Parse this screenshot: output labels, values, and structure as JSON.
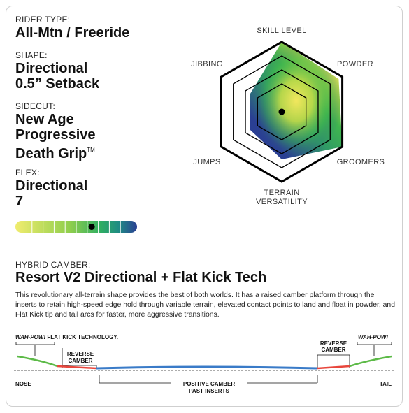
{
  "rider_type": {
    "label": "RIDER TYPE:",
    "value": "All-Mtn / Freeride"
  },
  "shape": {
    "label": "SHAPE:",
    "line1": "Directional",
    "line2": "0.5” Setback"
  },
  "sidecut": {
    "label": "SIDECUT:",
    "line1": "New Age",
    "line2": "Progressive",
    "line3": "Death Grip",
    "tm": "TM"
  },
  "flex": {
    "label": "FLEX:",
    "line1": "Directional",
    "line2": "7",
    "level": 7,
    "scale_max": 10
  },
  "radar": {
    "labels": {
      "skill": "SKILL LEVEL",
      "powder": "POWDER",
      "groomers": "GROOMERS",
      "terrain1": "TERRAIN",
      "terrain2": "VERSATILITY",
      "jumps": "JUMPS",
      "jibbing": "JIBBING"
    },
    "values": {
      "skill": 5,
      "powder": 4.7,
      "groomers": 5,
      "terrain": 3.4,
      "jumps": 2.6,
      "jibbing": 2.6
    },
    "max": 5
  },
  "camber": {
    "label": "HYBRID CAMBER:",
    "title": "Resort V2 Directional + Flat Kick Tech",
    "description": "This revolutionary all-terrain shape provides the best of both worlds. It has a raised camber platform through the inserts to retain high-speed edge hold through variable terrain, elevated contact points to land and float in powder, and Flat Kick tip and tail arcs for faster, more aggressive transitions."
  },
  "profile": {
    "wahpow_left_italic": "WAH-POW!",
    "wahpow_left_rest": " FLAT KICK TECHNOLOGY.",
    "wahpow_right": "WAH-POW!",
    "reverse": "REVERSE",
    "camber": "CAMBER",
    "nose": "NOSE",
    "tail": "TAIL",
    "positive1": "POSITIVE CAMBER",
    "positive2": "PAST INSERTS",
    "colors": {
      "flat": "#5cba47",
      "reverse": "#e8463c",
      "camber": "#3a7bc8"
    }
  }
}
